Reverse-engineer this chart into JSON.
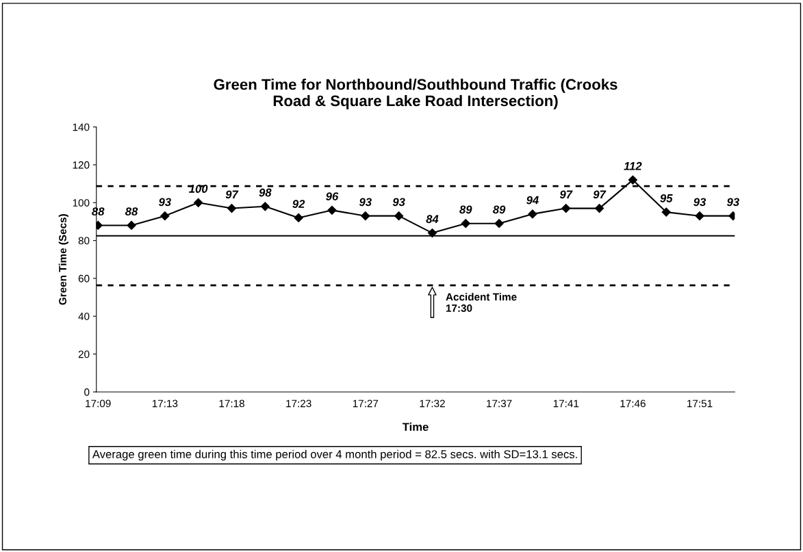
{
  "chart_data": {
    "type": "line",
    "title": "Green Time for Northbound/Southbound Traffic (Crooks\nRoad & Square Lake Road Intersection)",
    "xlabel": "Time",
    "ylabel": "Green Time (Secs)",
    "categories": [
      "17:09",
      null,
      "17:13",
      null,
      "17:18",
      null,
      "17:23",
      null,
      "17:27",
      null,
      "17:32",
      null,
      "17:37",
      null,
      "17:41",
      null,
      "17:46",
      null,
      "17:51",
      null
    ],
    "series": [
      {
        "color": "#000000",
        "values": [
          88,
          88,
          93,
          100,
          97,
          98,
          92,
          96,
          93,
          93,
          84,
          89,
          89,
          94,
          97,
          97,
          112,
          95,
          93,
          93
        ]
      }
    ],
    "ylim": [
      0,
      140
    ],
    "yticks": [
      0,
      20,
      40,
      60,
      80,
      100,
      120,
      140
    ],
    "ref_lines": [
      {
        "axis": "y",
        "value": 82.5,
        "line_style": "solid",
        "color": "#000000"
      },
      {
        "axis": "y",
        "value": 108.7,
        "line_style": "dashed",
        "color": "#000000"
      },
      {
        "axis": "y",
        "value": 56.3,
        "line_style": "dashed",
        "color": "#000000"
      }
    ],
    "annotations": [
      {
        "text": "Accident Time\n17:30",
        "x": "17:32",
        "y": 56.3
      },
      "Average green time during this time period over 4 month period = 82.5 secs. with SD=13.1 secs."
    ],
    "data_labels": true,
    "marker": "diamond",
    "line_style": "solid",
    "grid": false,
    "legend": false
  }
}
